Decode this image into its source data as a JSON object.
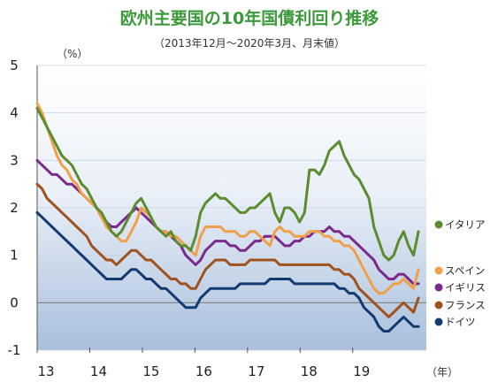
{
  "chart_data": {
    "type": "line",
    "title": "欧州主要国の10年国債利回り推移",
    "subtitle": "（2013年12月～2020年3月、月末値）",
    "ylabel": "（%）",
    "xlabel": "（年）",
    "ylim": [
      -1,
      5
    ],
    "yticks": [
      "5",
      "4",
      "3",
      "2",
      "1",
      "0",
      "-1"
    ],
    "xlim": [
      2013.0,
      2020.4
    ],
    "xticks": [
      {
        "label": "13",
        "x": 2013.0
      },
      {
        "label": "14",
        "x": 2014.0
      },
      {
        "label": "15",
        "x": 2015.0
      },
      {
        "label": "16",
        "x": 2016.0
      },
      {
        "label": "17",
        "x": 2017.0
      },
      {
        "label": "18",
        "x": 2018.0
      },
      {
        "label": "19",
        "x": 2019.0
      }
    ],
    "x_start": 2013.0,
    "x_end": 2020.25,
    "grid": true,
    "legend": "right",
    "series": [
      {
        "name": "イタリア",
        "color": "#5b8c2f",
        "values": [
          4.1,
          3.9,
          3.7,
          3.5,
          3.3,
          3.1,
          3.0,
          2.9,
          2.7,
          2.5,
          2.4,
          2.2,
          2.0,
          1.9,
          1.7,
          1.5,
          1.4,
          1.5,
          1.7,
          1.9,
          2.1,
          2.2,
          2.0,
          1.8,
          1.6,
          1.5,
          1.4,
          1.5,
          1.3,
          1.2,
          1.2,
          1.1,
          1.4,
          1.9,
          2.1,
          2.2,
          2.3,
          2.2,
          2.2,
          2.1,
          2.0,
          1.9,
          1.9,
          2.0,
          2.0,
          2.1,
          2.2,
          2.3,
          1.9,
          1.7,
          2.0,
          2.0,
          1.9,
          1.7,
          1.9,
          2.8,
          2.8,
          2.7,
          2.9,
          3.2,
          3.3,
          3.4,
          3.1,
          2.9,
          2.7,
          2.6,
          2.4,
          2.2,
          1.6,
          1.3,
          1.0,
          0.9,
          1.0,
          1.3,
          1.5,
          1.2,
          1.0,
          1.5
        ]
      },
      {
        "name": "スペイン",
        "color": "#f0a04b",
        "values": [
          4.2,
          4.0,
          3.7,
          3.4,
          3.1,
          2.9,
          2.8,
          2.6,
          2.5,
          2.3,
          2.2,
          2.1,
          2.0,
          1.8,
          1.6,
          1.5,
          1.4,
          1.3,
          1.3,
          1.5,
          1.7,
          2.0,
          1.9,
          1.8,
          1.6,
          1.5,
          1.5,
          1.4,
          1.4,
          1.3,
          1.2,
          1.1,
          1.0,
          1.4,
          1.6,
          1.6,
          1.6,
          1.6,
          1.5,
          1.5,
          1.5,
          1.4,
          1.4,
          1.5,
          1.5,
          1.4,
          1.3,
          1.2,
          1.5,
          1.6,
          1.5,
          1.5,
          1.4,
          1.4,
          1.4,
          1.5,
          1.5,
          1.5,
          1.4,
          1.4,
          1.3,
          1.3,
          1.2,
          1.2,
          1.1,
          0.9,
          0.7,
          0.5,
          0.3,
          0.2,
          0.2,
          0.3,
          0.4,
          0.4,
          0.5,
          0.4,
          0.3,
          0.7
        ]
      },
      {
        "name": "イギリス",
        "color": "#7b2a8c",
        "values": [
          3.0,
          2.9,
          2.8,
          2.7,
          2.7,
          2.6,
          2.5,
          2.5,
          2.4,
          2.3,
          2.2,
          2.1,
          2.0,
          1.8,
          1.7,
          1.6,
          1.6,
          1.7,
          1.8,
          1.9,
          2.0,
          1.9,
          1.8,
          1.7,
          1.6,
          1.5,
          1.5,
          1.4,
          1.3,
          1.2,
          1.0,
          0.9,
          0.8,
          0.9,
          1.1,
          1.2,
          1.3,
          1.3,
          1.3,
          1.2,
          1.2,
          1.1,
          1.1,
          1.2,
          1.3,
          1.3,
          1.4,
          1.4,
          1.4,
          1.3,
          1.2,
          1.2,
          1.3,
          1.3,
          1.4,
          1.4,
          1.5,
          1.5,
          1.5,
          1.6,
          1.5,
          1.5,
          1.4,
          1.4,
          1.3,
          1.2,
          1.1,
          1.0,
          0.9,
          0.7,
          0.6,
          0.5,
          0.5,
          0.6,
          0.6,
          0.5,
          0.4,
          0.4
        ]
      },
      {
        "name": "フランス",
        "color": "#a0521e",
        "values": [
          2.5,
          2.4,
          2.2,
          2.1,
          2.0,
          1.9,
          1.8,
          1.7,
          1.6,
          1.5,
          1.4,
          1.2,
          1.1,
          1.0,
          0.9,
          0.9,
          0.8,
          0.9,
          1.0,
          1.1,
          1.1,
          1.0,
          0.9,
          0.9,
          0.8,
          0.7,
          0.6,
          0.5,
          0.5,
          0.4,
          0.4,
          0.3,
          0.3,
          0.5,
          0.7,
          0.8,
          0.9,
          0.9,
          0.9,
          0.8,
          0.8,
          0.8,
          0.8,
          0.9,
          0.9,
          0.9,
          0.9,
          0.9,
          0.9,
          0.8,
          0.8,
          0.8,
          0.8,
          0.8,
          0.8,
          0.8,
          0.8,
          0.8,
          0.8,
          0.8,
          0.7,
          0.7,
          0.6,
          0.6,
          0.5,
          0.3,
          0.2,
          0.1,
          0.0,
          -0.1,
          -0.2,
          -0.3,
          -0.2,
          -0.1,
          0.0,
          -0.1,
          -0.2,
          0.1
        ]
      },
      {
        "name": "ドイツ",
        "color": "#123a70",
        "values": [
          1.9,
          1.8,
          1.7,
          1.6,
          1.5,
          1.4,
          1.3,
          1.2,
          1.1,
          1.0,
          0.9,
          0.8,
          0.7,
          0.6,
          0.5,
          0.5,
          0.5,
          0.5,
          0.6,
          0.7,
          0.7,
          0.6,
          0.5,
          0.5,
          0.4,
          0.3,
          0.3,
          0.2,
          0.1,
          0.0,
          -0.1,
          -0.1,
          -0.1,
          0.1,
          0.2,
          0.3,
          0.3,
          0.3,
          0.3,
          0.3,
          0.3,
          0.4,
          0.4,
          0.4,
          0.4,
          0.4,
          0.4,
          0.5,
          0.5,
          0.5,
          0.5,
          0.5,
          0.4,
          0.4,
          0.4,
          0.4,
          0.4,
          0.4,
          0.4,
          0.4,
          0.4,
          0.3,
          0.3,
          0.2,
          0.2,
          0.1,
          -0.1,
          -0.2,
          -0.3,
          -0.5,
          -0.6,
          -0.6,
          -0.5,
          -0.4,
          -0.3,
          -0.4,
          -0.5,
          -0.5
        ]
      }
    ]
  }
}
